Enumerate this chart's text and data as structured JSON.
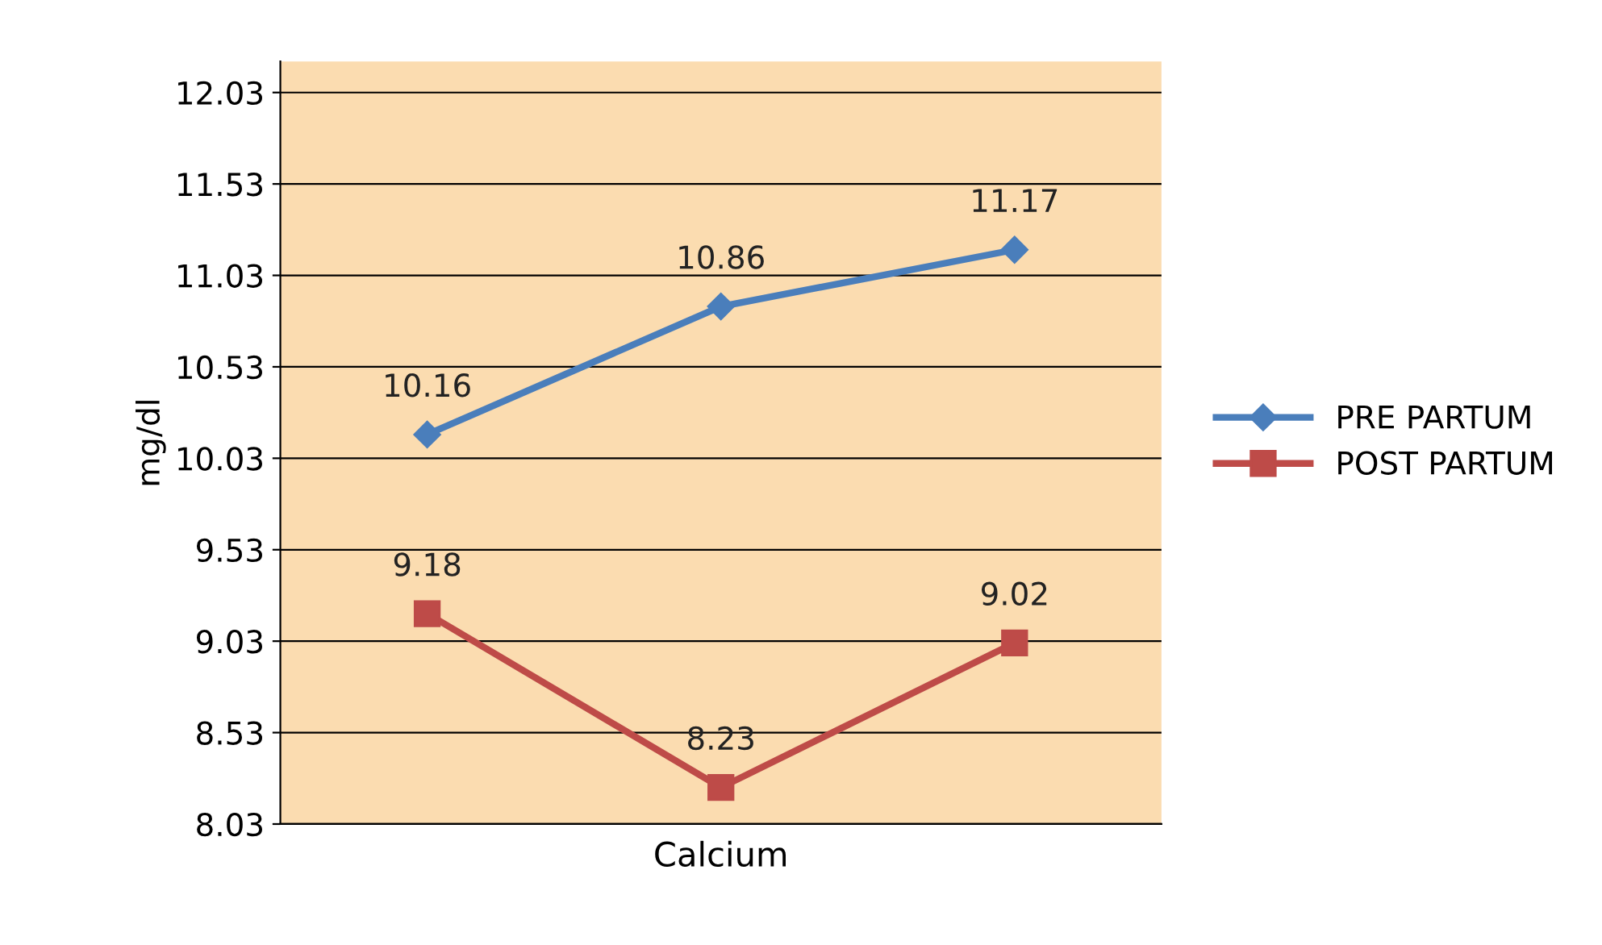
{
  "chart_data": {
    "type": "line",
    "xlabel": "Calcium",
    "ylabel": "mg/dl",
    "categories": [
      null,
      null,
      null
    ],
    "series": [
      {
        "name": "PRE PARTUM",
        "color": "#4a7ebb",
        "marker": "diamond",
        "values": [
          10.16,
          10.86,
          11.17
        ]
      },
      {
        "name": "POST PARTUM",
        "color": "#be4b48",
        "marker": "square",
        "values": [
          9.18,
          8.23,
          9.02
        ]
      }
    ],
    "ylim": [
      8.03,
      12.2
    ],
    "yticks": [
      8.03,
      8.53,
      9.03,
      9.53,
      10.03,
      10.53,
      11.03,
      11.53,
      12.03
    ],
    "grid": "y",
    "legend": "right",
    "data_labels": true
  }
}
